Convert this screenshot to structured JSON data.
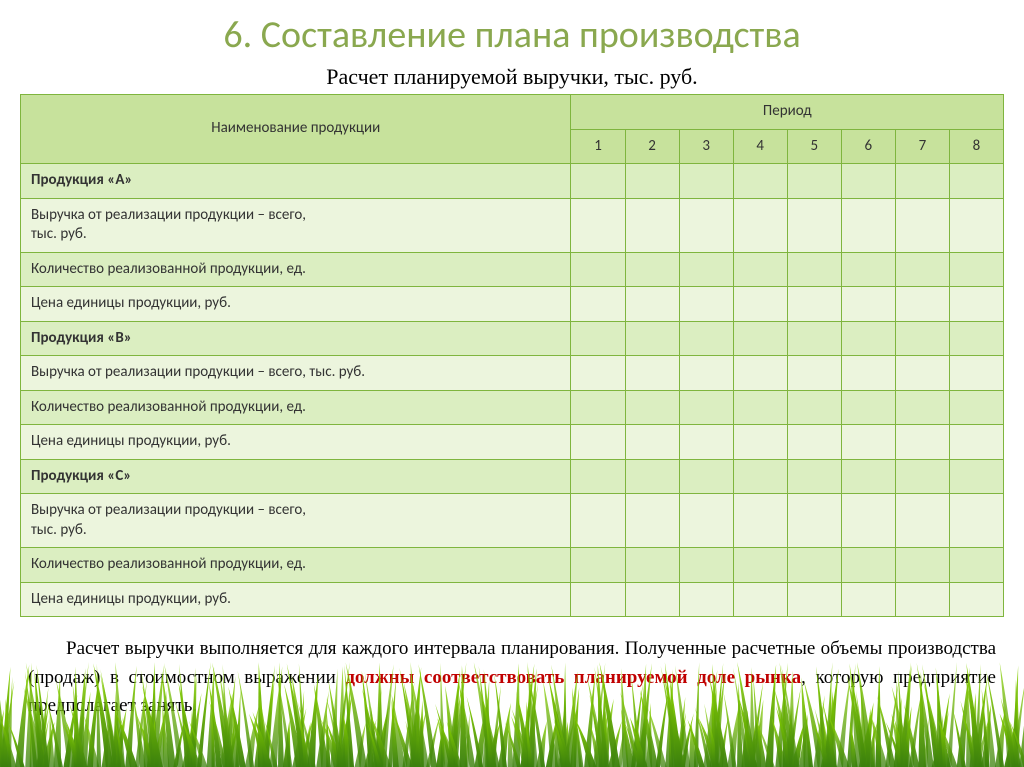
{
  "slide": {
    "title": "6. Составление плана производства",
    "table_title": "Расчет планируемой выручки, тыс. руб."
  },
  "table": {
    "header_name": "Наименование продукции",
    "header_period": "Период",
    "periods": [
      "1",
      "2",
      "3",
      "4",
      "5",
      "6",
      "7",
      "8"
    ],
    "rows": [
      {
        "label": "Продукция «А»",
        "bold": true
      },
      {
        "label": "Выручка от реализации продукции – всего,\nтыс. руб.",
        "bold": false
      },
      {
        "label": "Количество реализованной продукции, ед.",
        "bold": false
      },
      {
        "label": "Цена единицы продукции, руб.",
        "bold": false
      },
      {
        "label": "Продукция «В»",
        "bold": true
      },
      {
        "label": "Выручка от реализации продукции – всего, тыс. руб.",
        "bold": false
      },
      {
        "label": "Количество реализованной продукции, ед.",
        "bold": false
      },
      {
        "label": "Цена единицы продукции, руб.",
        "bold": false
      },
      {
        "label": "Продукция «С»",
        "bold": true
      },
      {
        "label": "Выручка от реализации продукции – всего,\nтыс. руб.",
        "bold": false
      },
      {
        "label": "Количество реализованной продукции, ед.",
        "bold": false
      },
      {
        "label": "Цена единицы продукции, руб.",
        "bold": false
      }
    ]
  },
  "paragraph": {
    "pre": "Расчет выручки выполняется для каждого интервала планирования. Полученные расчетные объемы производства (продаж) в стоимостном выражении ",
    "highlight": "должны соответствовать планируемой доле рынка",
    "post": ", которую предприятие предполагает занять."
  },
  "style": {
    "title_color": "#8aa84f",
    "border_color": "#7fb53e",
    "header_bg": "#c7e29c",
    "row_odd_bg": "#dbeec1",
    "row_even_bg": "#ecf5dd",
    "highlight_color": "#c00000",
    "grass_green_light": "#8bd400",
    "grass_green_dark": "#3a7f0d"
  }
}
